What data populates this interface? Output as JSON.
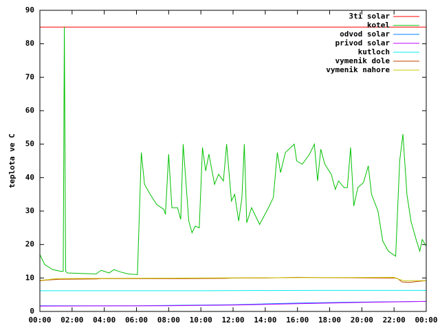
{
  "chart_data": {
    "type": "line",
    "ylabel": "teplota ve C",
    "xlim": [
      0,
      24
    ],
    "xticks": [
      {
        "value": 0,
        "label": "00:00"
      },
      {
        "value": 2,
        "label": "02:00"
      },
      {
        "value": 4,
        "label": "04:00"
      },
      {
        "value": 6,
        "label": "06:00"
      },
      {
        "value": 8,
        "label": "08:00"
      },
      {
        "value": 10,
        "label": "10:00"
      },
      {
        "value": 12,
        "label": "12:00"
      },
      {
        "value": 14,
        "label": "14:00"
      },
      {
        "value": 16,
        "label": "16:00"
      },
      {
        "value": 18,
        "label": "18:00"
      },
      {
        "value": 20,
        "label": "20:00"
      },
      {
        "value": 22,
        "label": "22:00"
      },
      {
        "value": 24,
        "label": "00:00"
      }
    ],
    "ylim": [
      0,
      90
    ],
    "yticks": [
      0,
      10,
      20,
      30,
      40,
      50,
      60,
      70,
      80,
      90
    ],
    "legend": "top-right",
    "series": [
      {
        "name": "3ti solar",
        "color": "#ff0000",
        "x": [
          0,
          24
        ],
        "values": [
          85,
          85
        ]
      },
      {
        "name": "kotel",
        "color": "#00c000",
        "x": [
          0,
          0.3,
          0.8,
          1.3,
          1.45,
          1.52,
          1.6,
          1.7,
          3.5,
          3.8,
          4.3,
          4.6,
          5.0,
          5.5,
          6.06,
          6.3,
          6.5,
          6.85,
          7.25,
          7.7,
          7.8,
          8.0,
          8.2,
          8.55,
          8.75,
          8.9,
          9.25,
          9.45,
          9.65,
          9.9,
          10.1,
          10.3,
          10.5,
          10.85,
          11.1,
          11.4,
          11.6,
          11.9,
          12.1,
          12.35,
          12.55,
          12.7,
          12.85,
          13.15,
          13.65,
          14.2,
          14.5,
          14.75,
          14.95,
          15.25,
          15.8,
          15.95,
          16.3,
          16.75,
          17.05,
          17.25,
          17.45,
          17.7,
          18.1,
          18.35,
          18.55,
          18.9,
          19.1,
          19.3,
          19.5,
          19.75,
          20.1,
          20.4,
          20.6,
          21.0,
          21.3,
          21.65,
          22.1,
          22.35,
          22.55,
          22.8,
          23.05,
          23.4,
          23.6,
          23.75,
          24
        ],
        "values": [
          17,
          14,
          12.5,
          12,
          12,
          85,
          12,
          11.5,
          11.2,
          12.3,
          11.5,
          12.5,
          11.8,
          11.2,
          11,
          47.5,
          38,
          35,
          32,
          30.5,
          29,
          47,
          31,
          31,
          27.5,
          50,
          27,
          23.5,
          25.5,
          25,
          49,
          42,
          47,
          38,
          41,
          39,
          50,
          33,
          35,
          27,
          34,
          50,
          26.5,
          31,
          26,
          31,
          34,
          47.5,
          41.5,
          47.5,
          50,
          45,
          44,
          47,
          50,
          39,
          48.5,
          44,
          41,
          36.5,
          39,
          37,
          37,
          49,
          31.5,
          37,
          38.5,
          43.5,
          35,
          30,
          21,
          18,
          16.5,
          45,
          53,
          35,
          27,
          21,
          18,
          21.5,
          19.5
        ]
      },
      {
        "name": "odvod solar",
        "color": "#0080ff",
        "x": [
          0,
          6,
          12,
          16,
          20,
          24
        ],
        "values": [
          1.7,
          1.7,
          2,
          2.5,
          2.8,
          3
        ]
      },
      {
        "name": "privod solar",
        "color": "#c000ff",
        "x": [
          0,
          8,
          12,
          16,
          20,
          24
        ],
        "values": [
          1.6,
          1.7,
          1.9,
          2.3,
          2.7,
          3
        ]
      },
      {
        "name": "kutloch",
        "color": "#00eeee",
        "x": [
          0,
          10,
          17,
          24
        ],
        "values": [
          6.2,
          6.2,
          6.3,
          6.3
        ]
      },
      {
        "name": "vymenik dole",
        "color": "#c04000",
        "x": [
          0,
          0.5,
          1.2,
          3.5,
          3.8,
          9,
          11.5,
          12,
          14,
          16,
          17.5,
          22,
          22.2,
          22.5,
          23,
          23.5,
          24
        ],
        "values": [
          9.2,
          9.4,
          9.6,
          9.7,
          9.8,
          9.8,
          9.9,
          10,
          10,
          10.2,
          10.1,
          10,
          9.9,
          8.8,
          8.7,
          9,
          9.2
        ]
      },
      {
        "name": "vymenik nahore",
        "color": "#c8c800",
        "x": [
          0,
          0.5,
          1,
          4,
          22,
          22.3,
          22.6,
          24
        ],
        "values": [
          9.3,
          9.5,
          9.8,
          9.9,
          10.2,
          9.6,
          9.2,
          9.2
        ]
      }
    ]
  }
}
